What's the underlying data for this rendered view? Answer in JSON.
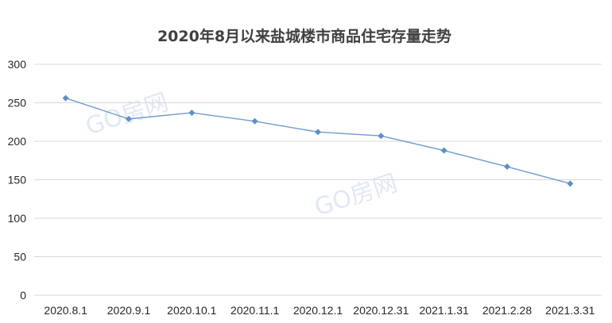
{
  "chart_data": {
    "type": "line",
    "title": "2020年8月以来盐城楼市商品住宅存量走势",
    "categories": [
      "2020.8.1",
      "2020.9.1",
      "2020.10.1",
      "2020.11.1",
      "2020.12.1",
      "2020.12.31",
      "2021.1.31",
      "2021.2.28",
      "2021.3.31"
    ],
    "series": [
      {
        "values": [
          256,
          229,
          237,
          226,
          212,
          207,
          188,
          167,
          145
        ]
      }
    ],
    "ylim": [
      0,
      300
    ],
    "yticks": [
      0,
      50,
      100,
      150,
      200,
      250,
      300
    ],
    "grid": true,
    "legend": "none",
    "colors": {
      "line": "#6f9bd1",
      "marker": "#5b8fc9"
    }
  },
  "watermarks": [
    "GO房网",
    "GO房网"
  ]
}
